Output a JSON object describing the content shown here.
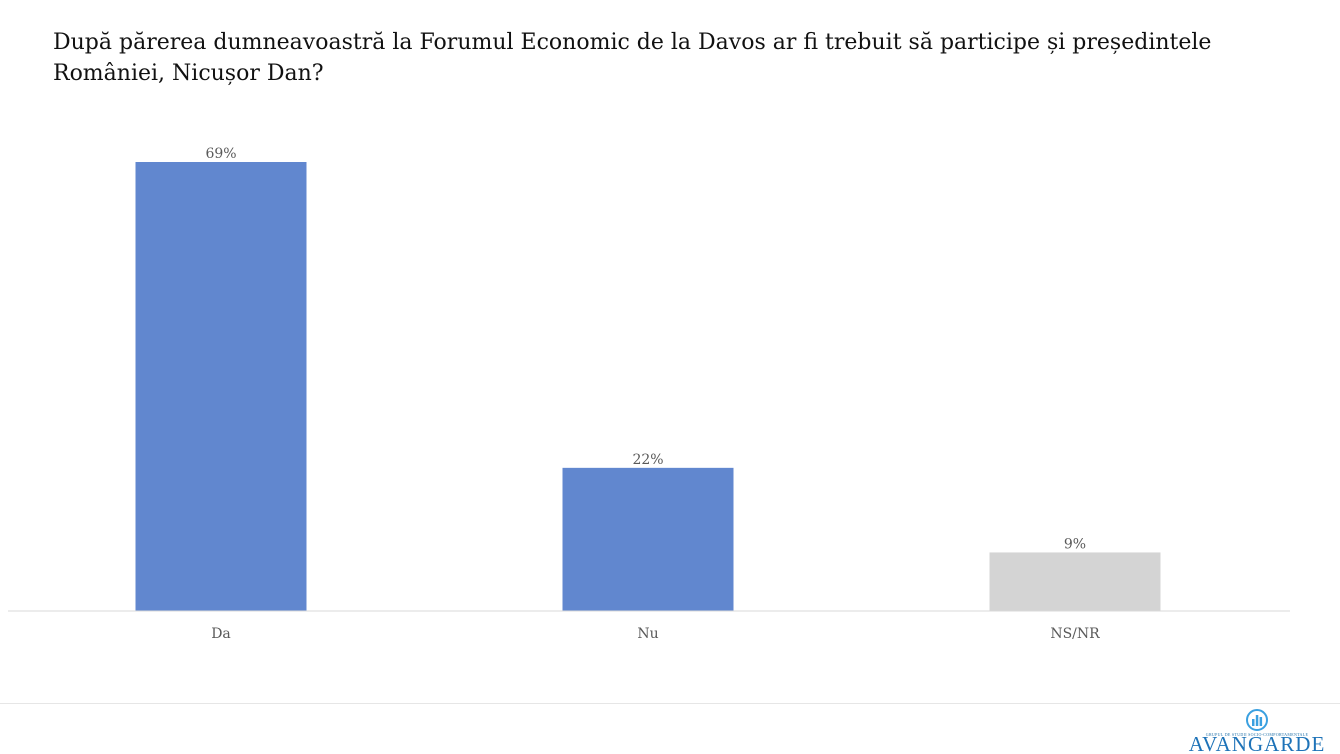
{
  "chart_data": {
    "type": "bar",
    "title": "După părerea dumneavoastră la Forumul Economic de la Davos ar fi trebuit să participe și președintele României, Nicușor Dan?",
    "categories": [
      "Da",
      "Nu",
      "NS/NR"
    ],
    "values": [
      69,
      22,
      9
    ],
    "data_labels": [
      "69%",
      "22%",
      "9%"
    ],
    "unit": "%",
    "ylim": [
      0,
      75
    ],
    "grid": false,
    "legend": "none",
    "colors": [
      "#6187cf",
      "#6187cf",
      "#d4d4d4"
    ],
    "axis_color": "#d9d9d9",
    "label_color": "#595959"
  },
  "branding": {
    "logo_text": "AVANGARDE",
    "logo_subtitle": "GRUPUL DE STUDII SOCIO-COMPORTAMENTALE",
    "logo_color": "#1e73b8",
    "logo_icon": "chart-circle-icon"
  }
}
